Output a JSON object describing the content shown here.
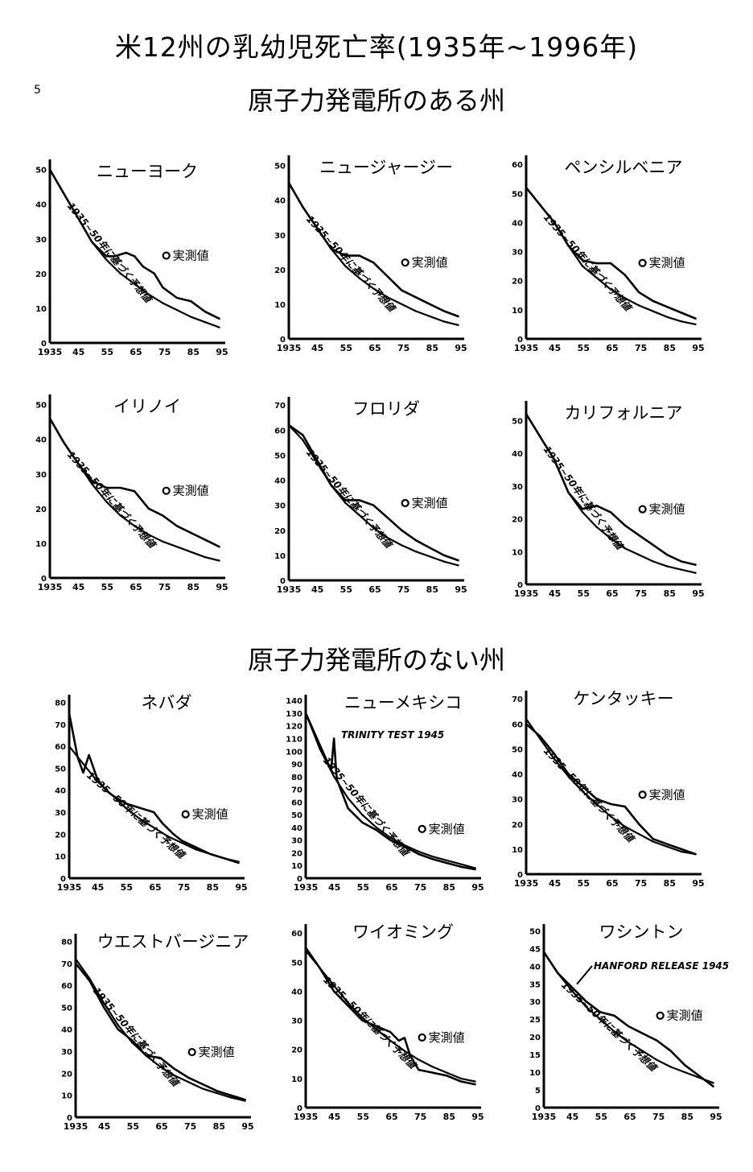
{
  "title": "米12州の乳幼児死亡率(1935年~1996年)",
  "page_number": "5",
  "sections": {
    "nuclear": "原子力発電所のある州",
    "non_nuclear": "原子力発電所のない州"
  },
  "labels": {
    "measured": "実測値",
    "projected": "1935~50年に基づく予想値"
  },
  "chart_data": [
    {
      "type": "line",
      "title": "ニューヨーク",
      "section": "原子力発電所のある州",
      "x_tick_labels": [
        "1935",
        "45",
        "55",
        "65",
        "75",
        "85",
        "95"
      ],
      "y_tick_labels": [
        "0",
        "10",
        "20",
        "30",
        "40",
        "50"
      ],
      "xlim": [
        1935,
        1996
      ],
      "ylim": [
        0,
        52
      ],
      "series": [
        {
          "name": "実測値",
          "x": [
            1935,
            1940,
            1945,
            1950,
            1955,
            1958,
            1962,
            1965,
            1968,
            1972,
            1975,
            1980,
            1985,
            1990,
            1995
          ],
          "y": [
            50,
            43,
            36,
            29,
            25,
            25,
            26,
            25,
            22,
            20,
            16,
            13,
            12,
            9,
            7
          ]
        },
        {
          "name": "1935~50年に基づく予想値",
          "x": [
            1935,
            1940,
            1945,
            1950,
            1955,
            1960,
            1965,
            1970,
            1975,
            1980,
            1985,
            1990,
            1995
          ],
          "y": [
            50,
            43,
            36,
            29,
            24,
            20,
            17,
            14,
            11.5,
            9.5,
            7.5,
            6,
            4.5
          ]
        }
      ]
    },
    {
      "type": "line",
      "title": "ニュージャージー",
      "section": "原子力発電所のある州",
      "x_tick_labels": [
        "1935",
        "45",
        "55",
        "65",
        "75",
        "85",
        "95"
      ],
      "y_tick_labels": [
        "0",
        "10",
        "20",
        "30",
        "40",
        "50"
      ],
      "xlim": [
        1935,
        1996
      ],
      "ylim": [
        0,
        52
      ],
      "series": [
        {
          "name": "実測値",
          "x": [
            1935,
            1940,
            1945,
            1950,
            1955,
            1960,
            1965,
            1970,
            1975,
            1980,
            1985,
            1990,
            1995
          ],
          "y": [
            45,
            38,
            32,
            26,
            24,
            24,
            22,
            18,
            14,
            12,
            10,
            8,
            6.5
          ]
        },
        {
          "name": "1935~50年に基づく予想値",
          "x": [
            1935,
            1940,
            1945,
            1950,
            1955,
            1960,
            1965,
            1970,
            1975,
            1980,
            1985,
            1990,
            1995
          ],
          "y": [
            45,
            38,
            32,
            26,
            21,
            17.5,
            14.5,
            12,
            10,
            8,
            6.5,
            5,
            4
          ]
        }
      ]
    },
    {
      "type": "line",
      "title": "ペンシルベニア",
      "section": "原子力発電所のある州",
      "x_tick_labels": [
        "1935",
        "45",
        "55",
        "65",
        "75",
        "85",
        "95"
      ],
      "y_tick_labels": [
        "0",
        "10",
        "20",
        "30",
        "40",
        "50",
        "60"
      ],
      "xlim": [
        1935,
        1996
      ],
      "ylim": [
        0,
        62
      ],
      "series": [
        {
          "name": "実測値",
          "x": [
            1935,
            1940,
            1945,
            1950,
            1955,
            1960,
            1965,
            1970,
            1975,
            1980,
            1985,
            1990,
            1995
          ],
          "y": [
            52,
            46,
            40,
            32,
            27,
            26,
            26,
            22,
            16,
            13,
            11,
            9,
            7
          ]
        },
        {
          "name": "1935~50年に基づく予想値",
          "x": [
            1935,
            1940,
            1945,
            1950,
            1955,
            1960,
            1965,
            1970,
            1975,
            1980,
            1985,
            1990,
            1995
          ],
          "y": [
            52,
            46,
            40,
            32,
            25,
            21,
            17,
            14,
            11.5,
            9.5,
            7.5,
            6,
            5
          ]
        }
      ]
    },
    {
      "type": "line",
      "title": "イリノイ",
      "section": "原子力発電所のある州",
      "x_tick_labels": [
        "1935",
        "45",
        "55",
        "65",
        "75",
        "85",
        "95"
      ],
      "y_tick_labels": [
        "0",
        "10",
        "20",
        "30",
        "40",
        "50"
      ],
      "xlim": [
        1935,
        1996
      ],
      "ylim": [
        0,
        52
      ],
      "series": [
        {
          "name": "実測値",
          "x": [
            1935,
            1940,
            1945,
            1950,
            1955,
            1960,
            1965,
            1970,
            1975,
            1980,
            1985,
            1990,
            1995
          ],
          "y": [
            46,
            39,
            33,
            28,
            26,
            26,
            25,
            20,
            18,
            15,
            13,
            11,
            9
          ]
        },
        {
          "name": "1935~50年に基づく予想値",
          "x": [
            1935,
            1940,
            1945,
            1950,
            1955,
            1960,
            1965,
            1970,
            1975,
            1980,
            1985,
            1990,
            1995
          ],
          "y": [
            46,
            39,
            33,
            27,
            22,
            18,
            15,
            12.5,
            10.5,
            9,
            7.5,
            6,
            5
          ]
        }
      ]
    },
    {
      "type": "line",
      "title": "フロリダ",
      "section": "原子力発電所のある州",
      "x_tick_labels": [
        "1935",
        "45",
        "55",
        "65",
        "75",
        "85",
        "95"
      ],
      "y_tick_labels": [
        "0",
        "10",
        "20",
        "30",
        "40",
        "50",
        "60",
        "70"
      ],
      "xlim": [
        1935,
        1996
      ],
      "ylim": [
        0,
        72
      ],
      "series": [
        {
          "name": "実測値",
          "x": [
            1935,
            1940,
            1945,
            1950,
            1955,
            1960,
            1965,
            1970,
            1975,
            1980,
            1985,
            1990,
            1995
          ],
          "y": [
            62,
            58,
            48,
            38,
            32,
            32,
            30,
            25,
            20,
            16,
            13,
            10,
            8
          ]
        },
        {
          "name": "1935~50年に基づく予想値",
          "x": [
            1935,
            1940,
            1945,
            1950,
            1955,
            1960,
            1965,
            1970,
            1975,
            1980,
            1985,
            1990,
            1995
          ],
          "y": [
            62,
            56,
            47,
            38,
            31,
            26,
            21,
            17,
            14,
            11.5,
            9.5,
            7.5,
            6
          ]
        }
      ]
    },
    {
      "type": "line",
      "title": "カリフォルニア",
      "section": "原子力発電所のある州",
      "x_tick_labels": [
        "1935",
        "45",
        "55",
        "65",
        "75",
        "85",
        "95"
      ],
      "y_tick_labels": [
        "0",
        "10",
        "20",
        "30",
        "40",
        "50"
      ],
      "xlim": [
        1935,
        1996
      ],
      "ylim": [
        0,
        55
      ],
      "series": [
        {
          "name": "実測値",
          "x": [
            1935,
            1940,
            1945,
            1950,
            1955,
            1960,
            1965,
            1970,
            1975,
            1980,
            1985,
            1990,
            1995
          ],
          "y": [
            52,
            45,
            38,
            28,
            23,
            24,
            22,
            18,
            15,
            12,
            9,
            7,
            6
          ]
        },
        {
          "name": "1935~50年に基づく予想値",
          "x": [
            1935,
            1940,
            1945,
            1950,
            1955,
            1960,
            1965,
            1970,
            1975,
            1980,
            1985,
            1990,
            1995
          ],
          "y": [
            52,
            45,
            38,
            28,
            22,
            17.5,
            14,
            11,
            9,
            7,
            5.5,
            4.5,
            3.5
          ]
        }
      ]
    },
    {
      "type": "line",
      "title": "ネバダ",
      "section": "原子力発電所のない州",
      "x_tick_labels": [
        "1935",
        "45",
        "55",
        "65",
        "75",
        "85",
        "95"
      ],
      "y_tick_labels": [
        "0",
        "10",
        "20",
        "30",
        "40",
        "50",
        "60",
        "70",
        "80"
      ],
      "xlim": [
        1935,
        1996
      ],
      "ylim": [
        0,
        82
      ],
      "series": [
        {
          "name": "実測値",
          "x": [
            1935,
            1938,
            1940,
            1942,
            1945,
            1948,
            1950,
            1955,
            1960,
            1965,
            1968,
            1972,
            1975,
            1980,
            1985,
            1990,
            1995
          ],
          "y": [
            75,
            55,
            48,
            56,
            45,
            40,
            38,
            34,
            32,
            30,
            25,
            20,
            17,
            14,
            11,
            9,
            7
          ]
        },
        {
          "name": "1935~50年に基づく予想値",
          "x": [
            1935,
            1940,
            1945,
            1950,
            1955,
            1960,
            1965,
            1970,
            1975,
            1980,
            1985,
            1990,
            1995
          ],
          "y": [
            60,
            52,
            44,
            38,
            32,
            27,
            23,
            19,
            16,
            13,
            11,
            9,
            7.5
          ]
        }
      ]
    },
    {
      "type": "line",
      "title": "ニューメキシコ",
      "section": "原子力発電所のない州",
      "x_tick_labels": [
        "1935",
        "45",
        "55",
        "65",
        "75",
        "85",
        "95"
      ],
      "y_tick_labels": [
        "0",
        "10",
        "20",
        "30",
        "40",
        "50",
        "60",
        "70",
        "80",
        "90",
        "100",
        "110",
        "120",
        "130",
        "140"
      ],
      "xlim": [
        1935,
        1996
      ],
      "ylim": [
        0,
        142
      ],
      "annotations": [
        "TRINITY TEST 1945"
      ],
      "series": [
        {
          "name": "実測値",
          "x": [
            1935,
            1940,
            1944,
            1945,
            1946,
            1950,
            1955,
            1960,
            1965,
            1970,
            1975,
            1980,
            1985,
            1990,
            1995
          ],
          "y": [
            130,
            105,
            85,
            110,
            78,
            55,
            44,
            38,
            30,
            25,
            19,
            15,
            12,
            9,
            7
          ]
        },
        {
          "name": "1935~50年に基づく予想値",
          "x": [
            1935,
            1940,
            1945,
            1950,
            1955,
            1960,
            1965,
            1970,
            1975,
            1980,
            1985,
            1990,
            1995
          ],
          "y": [
            130,
            102,
            80,
            63,
            50,
            40,
            32,
            26,
            21,
            17,
            14,
            11,
            8
          ]
        }
      ]
    },
    {
      "type": "line",
      "title": "ケンタッキー",
      "section": "原子力発電所のない州",
      "x_tick_labels": [
        "1935",
        "45",
        "55",
        "65",
        "75",
        "85",
        "95"
      ],
      "y_tick_labels": [
        "0",
        "10",
        "20",
        "30",
        "40",
        "50",
        "60",
        "70"
      ],
      "xlim": [
        1935,
        1996
      ],
      "ylim": [
        0,
        72
      ],
      "series": [
        {
          "name": "実測値",
          "x": [
            1935,
            1940,
            1945,
            1950,
            1955,
            1960,
            1965,
            1970,
            1975,
            1980,
            1985,
            1990,
            1995
          ],
          "y": [
            60,
            55,
            48,
            40,
            35,
            30,
            28,
            27,
            20,
            14,
            12,
            10,
            8
          ]
        },
        {
          "name": "1935~50年に基づく予想値",
          "x": [
            1935,
            1940,
            1945,
            1950,
            1955,
            1960,
            1965,
            1970,
            1975,
            1980,
            1985,
            1990,
            1995
          ],
          "y": [
            62,
            54,
            46,
            39,
            33,
            28,
            23,
            19,
            16,
            13,
            11,
            9,
            8
          ]
        }
      ]
    },
    {
      "type": "line",
      "title": "ウエストバージニア",
      "section": "原子力発電所のない州",
      "x_tick_labels": [
        "1935",
        "45",
        "55",
        "65",
        "75",
        "85",
        "95"
      ],
      "y_tick_labels": [
        "0",
        "10",
        "20",
        "30",
        "40",
        "50",
        "60",
        "70",
        "80"
      ],
      "xlim": [
        1935,
        1996
      ],
      "ylim": [
        0,
        82
      ],
      "series": [
        {
          "name": "実測値",
          "x": [
            1935,
            1940,
            1945,
            1950,
            1955,
            1960,
            1965,
            1970,
            1975,
            1980,
            1985,
            1990,
            1995
          ],
          "y": [
            70,
            62,
            50,
            40,
            35,
            28,
            27,
            22,
            18,
            15,
            12,
            10,
            8
          ]
        },
        {
          "name": "1935~50年に基づく予想値",
          "x": [
            1935,
            1940,
            1945,
            1950,
            1955,
            1960,
            1965,
            1970,
            1975,
            1980,
            1985,
            1990,
            1995
          ],
          "y": [
            72,
            63,
            52,
            42,
            34,
            28,
            23,
            19,
            16,
            13,
            11,
            9,
            7.5
          ]
        }
      ]
    },
    {
      "type": "line",
      "title": "ワイオミング",
      "section": "原子力発電所のない州",
      "x_tick_labels": [
        "1935",
        "45",
        "55",
        "65",
        "75",
        "85",
        "95"
      ],
      "y_tick_labels": [
        "0",
        "10",
        "20",
        "30",
        "40",
        "50",
        "60"
      ],
      "xlim": [
        1935,
        1996
      ],
      "ylim": [
        0,
        62
      ],
      "series": [
        {
          "name": "実測値",
          "x": [
            1935,
            1940,
            1945,
            1950,
            1955,
            1960,
            1965,
            1968,
            1970,
            1972,
            1975,
            1980,
            1985,
            1990,
            1995
          ],
          "y": [
            55,
            48,
            40,
            35,
            30,
            28,
            26,
            23,
            24,
            18,
            13,
            12,
            11,
            9,
            8
          ]
        },
        {
          "name": "1935~50年に基づく予想値",
          "x": [
            1935,
            1940,
            1945,
            1950,
            1955,
            1960,
            1965,
            1970,
            1975,
            1980,
            1985,
            1990,
            1995
          ],
          "y": [
            54,
            48,
            42,
            36,
            31,
            27,
            23,
            19.5,
            16.5,
            14,
            12,
            10,
            9
          ]
        }
      ]
    },
    {
      "type": "line",
      "title": "ワシントン",
      "section": "原子力発電所のない州",
      "x_tick_labels": [
        "1935",
        "45",
        "55",
        "65",
        "75",
        "85",
        "95"
      ],
      "y_tick_labels": [
        "0",
        "5",
        "10",
        "15",
        "20",
        "25",
        "30",
        "35",
        "40",
        "45",
        "50"
      ],
      "xlim": [
        1935,
        1996
      ],
      "ylim": [
        0,
        51
      ],
      "annotations": [
        "HANFORD RELEASE 1945"
      ],
      "series": [
        {
          "name": "実測値",
          "x": [
            1935,
            1940,
            1945,
            1950,
            1955,
            1960,
            1965,
            1970,
            1975,
            1980,
            1985,
            1990,
            1995
          ],
          "y": [
            44,
            38,
            34,
            30,
            27,
            26,
            23,
            21,
            19,
            16,
            12,
            9,
            6
          ]
        },
        {
          "name": "1935~50年に基づく予想値",
          "x": [
            1935,
            1940,
            1945,
            1950,
            1955,
            1960,
            1965,
            1970,
            1975,
            1980,
            1985,
            1990,
            1995
          ],
          "y": [
            44,
            38,
            33,
            28.5,
            25,
            21.5,
            18.5,
            16,
            13.5,
            11.5,
            10,
            8.5,
            7
          ]
        }
      ]
    }
  ]
}
